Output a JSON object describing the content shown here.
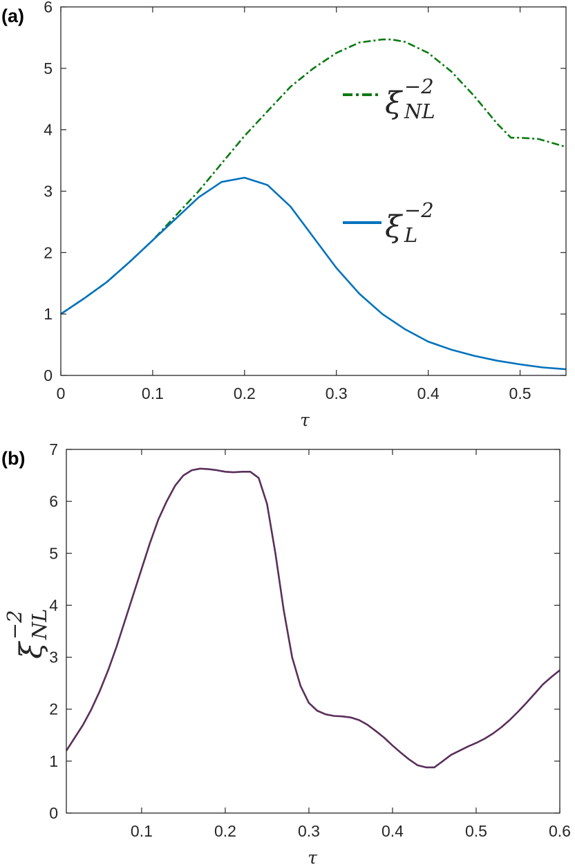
{
  "chart_data": [
    {
      "panel_label": "(a)",
      "type": "line",
      "xlabel": "τ",
      "ylabel": "",
      "xlim": [
        0,
        0.55
      ],
      "ylim": [
        0,
        6
      ],
      "xticks": [
        "0",
        "0.1",
        "0.2",
        "0.3",
        "0.4",
        "0.5"
      ],
      "yticks": [
        "0",
        "1",
        "2",
        "3",
        "4",
        "5",
        "6"
      ],
      "grid": false,
      "legend_placement": "inside right",
      "series": [
        {
          "name": "ξ_NL^-2",
          "name_base": "ξ",
          "name_sub": "NL",
          "name_sup": "−2",
          "color": "#0a7a12",
          "style": "dash-dot",
          "x": [
            0,
            0.025,
            0.05,
            0.075,
            0.1,
            0.125,
            0.15,
            0.175,
            0.2,
            0.225,
            0.25,
            0.275,
            0.3,
            0.325,
            0.35,
            0.36,
            0.375,
            0.4,
            0.425,
            0.45,
            0.475,
            0.49,
            0.5,
            0.52,
            0.55
          ],
          "values": [
            1.0,
            1.25,
            1.52,
            1.85,
            2.2,
            2.6,
            3.0,
            3.45,
            3.9,
            4.3,
            4.7,
            5.0,
            5.25,
            5.42,
            5.47,
            5.47,
            5.43,
            5.25,
            4.95,
            4.55,
            4.1,
            3.87,
            3.87,
            3.85,
            3.72
          ]
        },
        {
          "name": "ξ_L^-2",
          "name_base": "ξ",
          "name_sub": "L",
          "name_sup": "−2",
          "color": "#0072bd",
          "style": "solid",
          "x": [
            0,
            0.025,
            0.05,
            0.075,
            0.1,
            0.125,
            0.15,
            0.175,
            0.2,
            0.225,
            0.25,
            0.275,
            0.3,
            0.325,
            0.35,
            0.375,
            0.4,
            0.425,
            0.45,
            0.475,
            0.5,
            0.525,
            0.55
          ],
          "values": [
            1.0,
            1.25,
            1.52,
            1.85,
            2.2,
            2.55,
            2.9,
            3.15,
            3.22,
            3.1,
            2.75,
            2.25,
            1.75,
            1.33,
            1.0,
            0.75,
            0.55,
            0.42,
            0.32,
            0.24,
            0.18,
            0.13,
            0.1
          ]
        }
      ]
    },
    {
      "panel_label": "(b)",
      "type": "line",
      "xlabel": "τ",
      "ylabel": "ξ_NL^-2",
      "ylabel_base": "ξ",
      "ylabel_sub": "NL",
      "ylabel_sup": "−2",
      "xlim": [
        0.01,
        0.6
      ],
      "ylim": [
        0,
        7
      ],
      "xticks": [
        "0.1",
        "0.2",
        "0.3",
        "0.4",
        "0.5",
        "0.6"
      ],
      "yticks": [
        "0",
        "1",
        "2",
        "3",
        "4",
        "5",
        "6",
        "7"
      ],
      "grid": false,
      "series": [
        {
          "color": "#5a2f5a",
          "style": "solid",
          "x": [
            0.01,
            0.02,
            0.03,
            0.04,
            0.05,
            0.06,
            0.07,
            0.08,
            0.09,
            0.1,
            0.11,
            0.12,
            0.13,
            0.14,
            0.15,
            0.16,
            0.17,
            0.18,
            0.19,
            0.2,
            0.21,
            0.22,
            0.23,
            0.24,
            0.25,
            0.26,
            0.27,
            0.28,
            0.29,
            0.3,
            0.31,
            0.32,
            0.33,
            0.34,
            0.35,
            0.36,
            0.37,
            0.38,
            0.39,
            0.4,
            0.41,
            0.42,
            0.43,
            0.44,
            0.45,
            0.46,
            0.47,
            0.48,
            0.49,
            0.5,
            0.51,
            0.52,
            0.53,
            0.54,
            0.55,
            0.56,
            0.57,
            0.58,
            0.59,
            0.6
          ],
          "values": [
            1.2,
            1.45,
            1.7,
            2.0,
            2.35,
            2.75,
            3.2,
            3.7,
            4.2,
            4.7,
            5.2,
            5.65,
            6.0,
            6.3,
            6.5,
            6.6,
            6.63,
            6.62,
            6.6,
            6.57,
            6.56,
            6.57,
            6.57,
            6.45,
            5.95,
            5.0,
            3.9,
            3.0,
            2.45,
            2.12,
            1.97,
            1.9,
            1.87,
            1.86,
            1.84,
            1.79,
            1.7,
            1.58,
            1.45,
            1.3,
            1.16,
            1.03,
            0.92,
            0.88,
            0.88,
            1.0,
            1.12,
            1.2,
            1.28,
            1.35,
            1.43,
            1.53,
            1.65,
            1.79,
            1.95,
            2.12,
            2.3,
            2.48,
            2.62,
            2.75
          ]
        }
      ]
    }
  ]
}
